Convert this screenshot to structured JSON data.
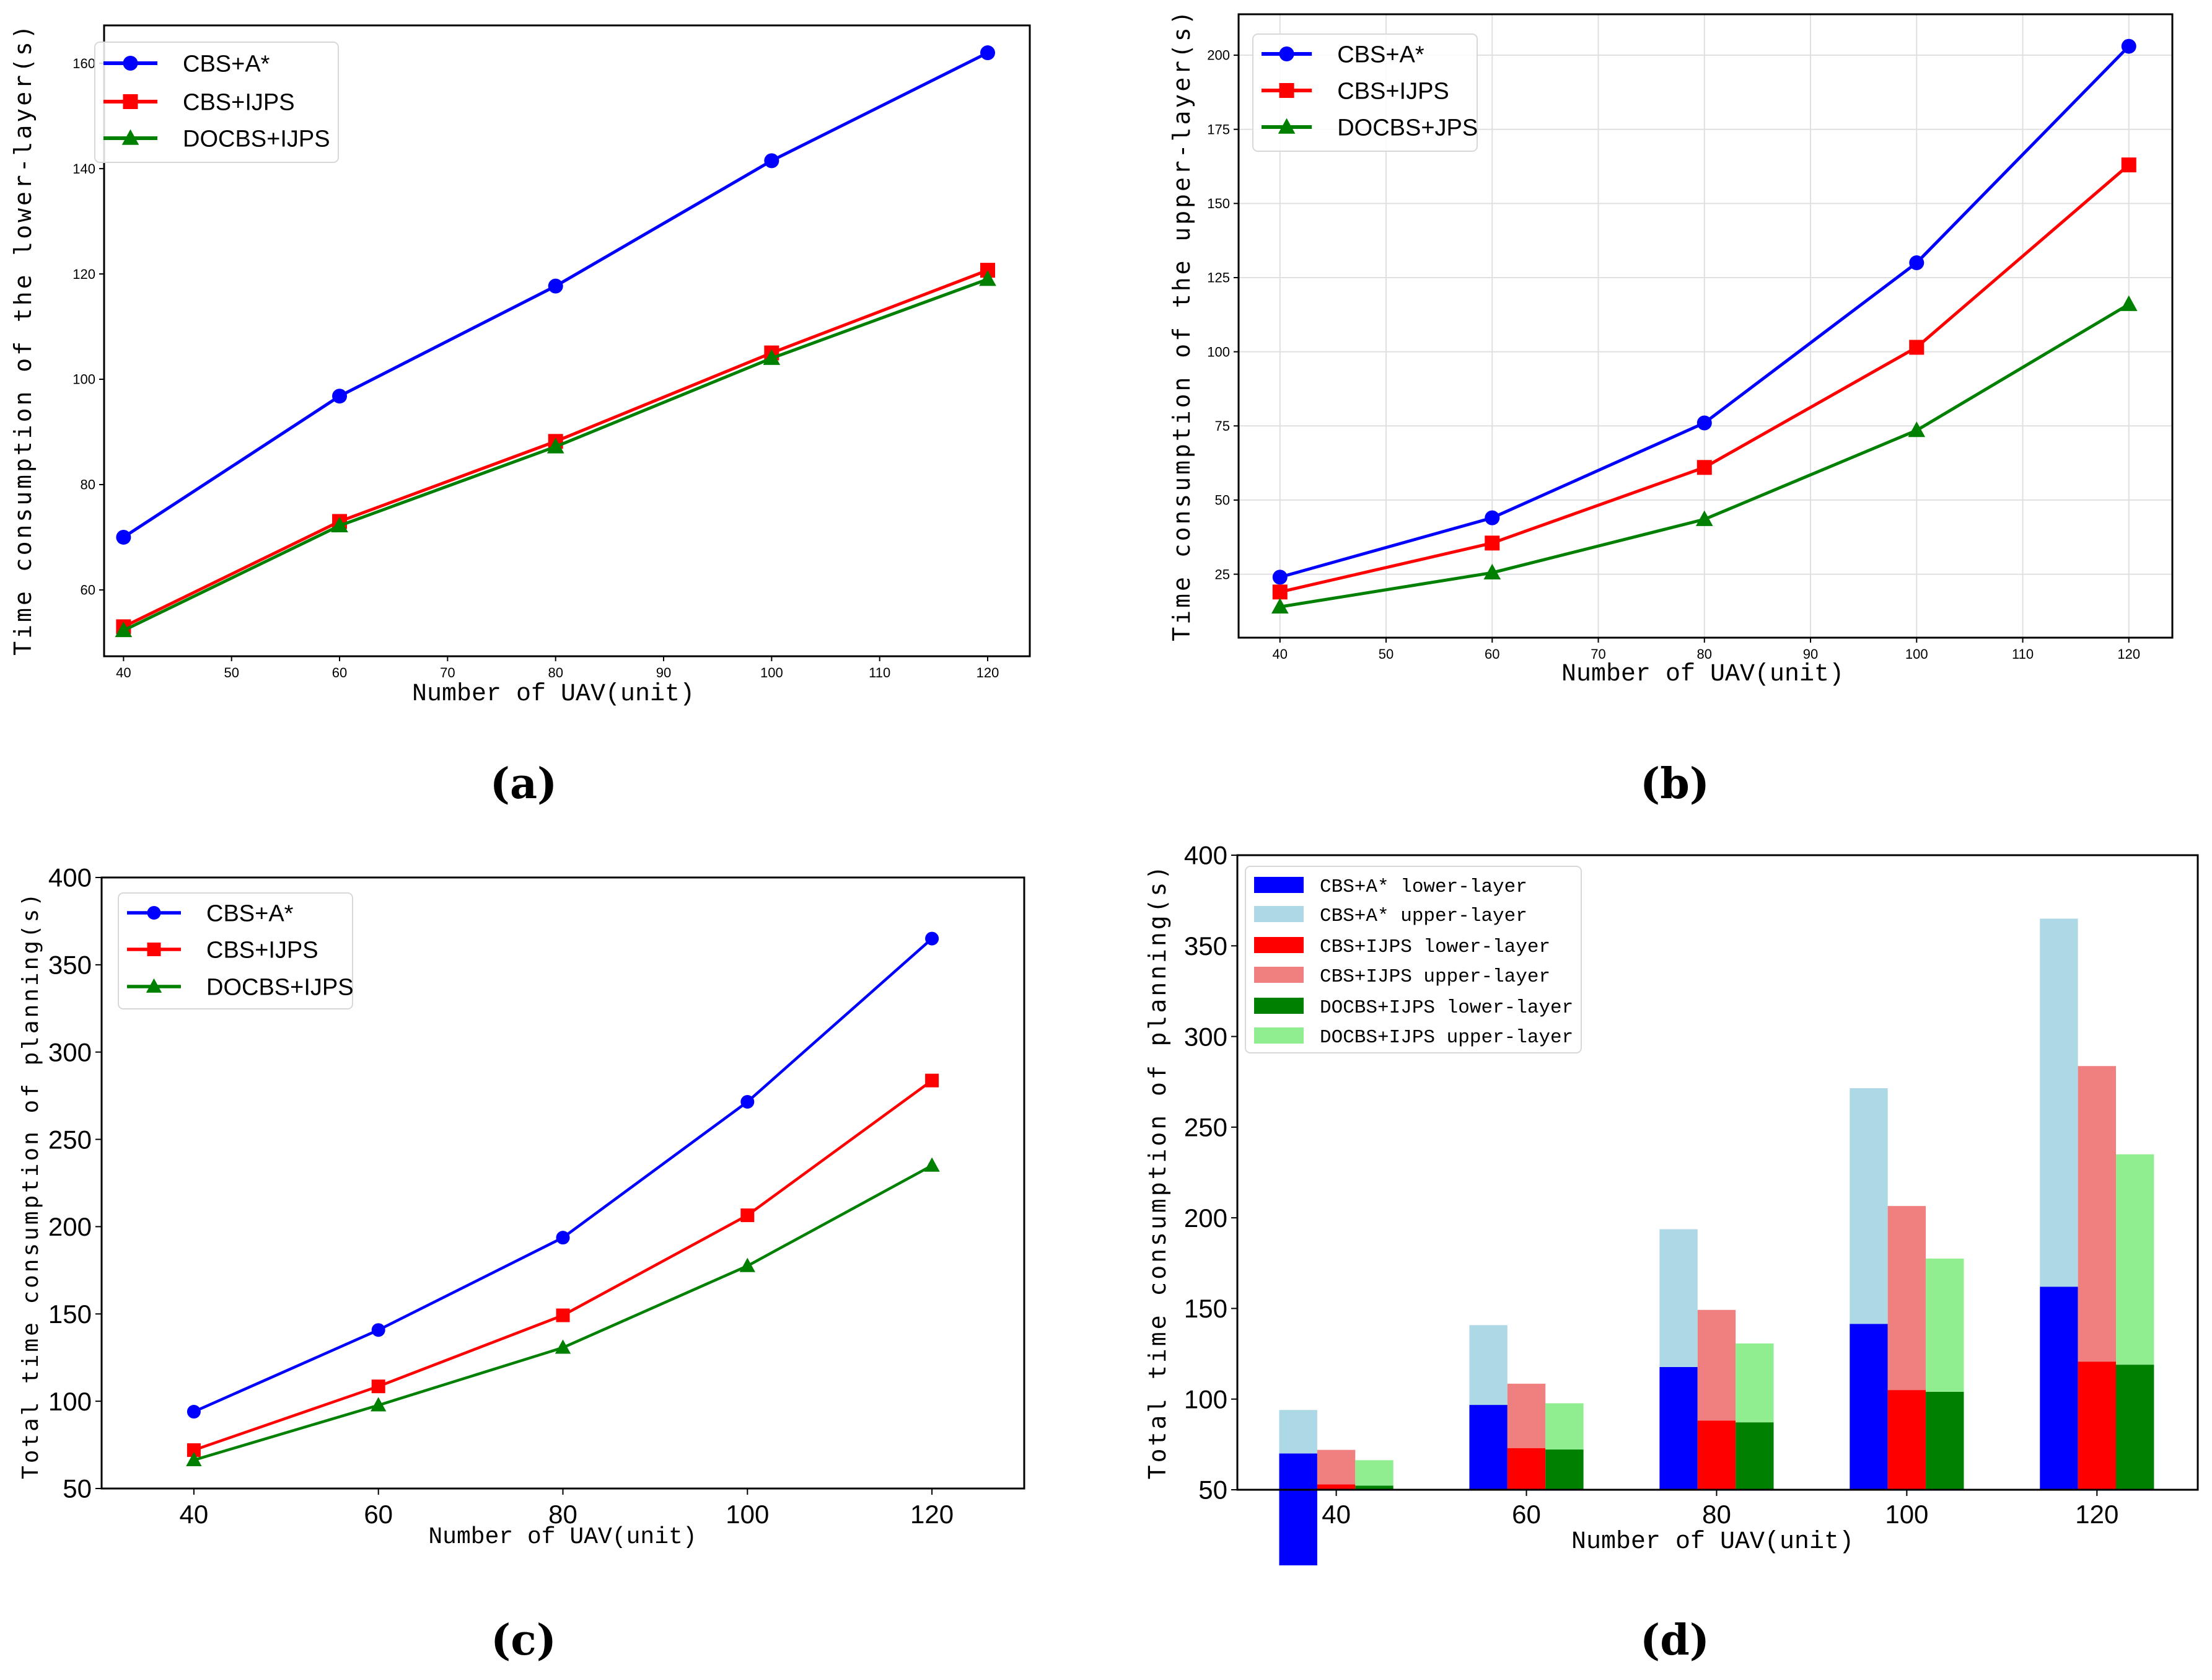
{
  "captions": [
    "(a)",
    "(b)",
    "(c)",
    "(d)"
  ],
  "chart_data": [
    {
      "type": "line",
      "title": "",
      "xlabel": "Number of UAV(unit)",
      "ylabel": "Time consumption of the lower-layer(s)",
      "x": [
        40,
        60,
        80,
        100,
        120
      ],
      "xticks": [
        40,
        50,
        60,
        70,
        80,
        90,
        100,
        110,
        120
      ],
      "yticks": [
        60,
        80,
        100,
        120,
        140,
        160
      ],
      "xlim": [
        38.2,
        123.9
      ],
      "ylim": [
        47.4,
        167.2
      ],
      "grid": false,
      "legend_position": "top-left",
      "series": [
        {
          "name": "CBS+A*",
          "color": "#0000ff",
          "marker": "circle",
          "values": [
            70,
            96.8,
            117.7,
            141.5,
            162
          ]
        },
        {
          "name": "CBS+IJPS",
          "color": "#ff0000",
          "marker": "square",
          "values": [
            53,
            73,
            88.2,
            105,
            120.7
          ]
        },
        {
          "name": "DOCBS+IJPS",
          "color": "#008000",
          "marker": "triangle",
          "values": [
            52.3,
            72.2,
            87.2,
            104,
            119
          ]
        }
      ]
    },
    {
      "type": "line",
      "title": "",
      "xlabel": "Number of UAV(unit)",
      "ylabel": "Time consumption of the upper-layer(s)",
      "x": [
        40,
        60,
        80,
        100,
        120
      ],
      "xticks": [
        40,
        50,
        60,
        70,
        80,
        90,
        100,
        110,
        120
      ],
      "yticks": [
        25,
        50,
        75,
        100,
        125,
        150,
        175,
        200
      ],
      "xlim": [
        36.1,
        124.1
      ],
      "ylim": [
        3.6,
        213.8
      ],
      "grid": true,
      "legend_position": "top-left",
      "series": [
        {
          "name": "CBS+A*",
          "color": "#0000ff",
          "marker": "circle",
          "values": [
            24,
            44,
            76,
            130,
            203
          ]
        },
        {
          "name": "CBS+IJPS",
          "color": "#ff0000",
          "marker": "square",
          "values": [
            19,
            35.5,
            61,
            101.5,
            163
          ]
        },
        {
          "name": "DOCBS+JPS",
          "color": "#008000",
          "marker": "triangle",
          "values": [
            14,
            25.5,
            43.5,
            73.5,
            116
          ]
        }
      ]
    },
    {
      "type": "line",
      "title": "",
      "xlabel": "Number of UAV(unit)",
      "ylabel": "Total time consumption of planning(s)",
      "x": [
        40,
        60,
        80,
        100,
        120
      ],
      "xticks": [
        40,
        60,
        80,
        100,
        120
      ],
      "yticks": [
        50,
        100,
        150,
        200,
        250,
        300,
        350,
        400
      ],
      "xlim": [
        30,
        130
      ],
      "ylim": [
        50,
        400
      ],
      "grid": false,
      "legend_position": "top-left",
      "series": [
        {
          "name": "CBS+A*",
          "color": "#0000ff",
          "marker": "circle",
          "values": [
            94,
            140.8,
            193.7,
            271.5,
            365
          ]
        },
        {
          "name": "CBS+IJPS",
          "color": "#ff0000",
          "marker": "square",
          "values": [
            72,
            108.5,
            149.2,
            206.5,
            283.7
          ]
        },
        {
          "name": "DOCBS+IJPS",
          "color": "#008000",
          "marker": "triangle",
          "values": [
            66.3,
            97.7,
            130.7,
            177.5,
            235
          ]
        }
      ]
    },
    {
      "type": "bar",
      "stacked": true,
      "title": "",
      "xlabel": "Number of UAV(unit)",
      "ylabel": "Total time consumption of planning(s)",
      "categories": [
        "40",
        "60",
        "80",
        "100",
        "120"
      ],
      "yticks": [
        50,
        100,
        150,
        200,
        250,
        300,
        350,
        400
      ],
      "ylim": [
        50,
        400
      ],
      "grid": false,
      "legend_position": "top-left",
      "groups": [
        {
          "lower": {
            "name": "CBS+A* lower-layer",
            "color": "#0000ff",
            "values": [
              70,
              96.8,
              117.7,
              141.5,
              162
            ]
          },
          "upper": {
            "name": "CBS+A* upper-layer",
            "color": "#add8e6",
            "values": [
              24,
              44,
              76,
              130,
              203
            ]
          }
        },
        {
          "lower": {
            "name": "CBS+IJPS lower-layer",
            "color": "#ff0000",
            "values": [
              53,
              73,
              88.2,
              105,
              120.7
            ]
          },
          "upper": {
            "name": "CBS+IJPS upper-layer",
            "color": "#f08080",
            "values": [
              19,
              35.5,
              61,
              101.5,
              163
            ]
          }
        },
        {
          "lower": {
            "name": "DOCBS+IJPS lower-layer",
            "color": "#008000",
            "values": [
              52.3,
              72.2,
              87.2,
              104,
              119
            ]
          },
          "upper": {
            "name": "DOCBS+IJPS upper-layer",
            "color": "#90ee90",
            "values": [
              14,
              25.5,
              43.5,
              73.5,
              116
            ]
          }
        }
      ]
    }
  ]
}
